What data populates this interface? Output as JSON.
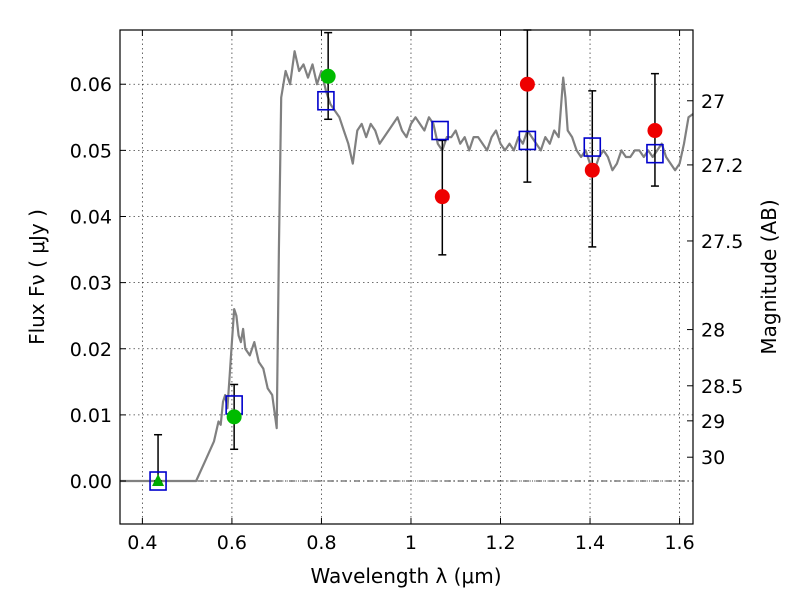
{
  "chart_data": {
    "type": "scatter",
    "xlabel": "Wavelength  λ (μm)",
    "ylabel": "Flux  Fν  ( μJy )",
    "y2label": "Magnitude (AB)",
    "xlim": [
      0.35,
      1.63
    ],
    "ylim": [
      -0.0065,
      0.0682
    ],
    "x_ticks": [
      0.4,
      0.6,
      0.8,
      1.0,
      1.2,
      1.4,
      1.6
    ],
    "x_tick_labels": [
      "0.4",
      "0.6",
      "0.8",
      "1",
      "1.2",
      "1.4",
      "1.6"
    ],
    "y_ticks": [
      0.0,
      0.01,
      0.02,
      0.03,
      0.04,
      0.05,
      0.06
    ],
    "y_tick_labels": [
      "0.00",
      "0.01",
      "0.02",
      "0.03",
      "0.04",
      "0.05",
      "0.06"
    ],
    "y2_ticks": [
      {
        "label": "27",
        "flux": 0.0575
      },
      {
        "label": "27.2",
        "flux": 0.0478
      },
      {
        "label": "27.5",
        "flux": 0.0363
      },
      {
        "label": "28",
        "flux": 0.0229
      },
      {
        "label": "28.5",
        "flux": 0.0144
      },
      {
        "label": "29",
        "flux": 0.0091
      },
      {
        "label": "30",
        "flux": 0.0036
      }
    ],
    "grid": true,
    "series": [
      {
        "kind": "line",
        "color": "#808080",
        "x": [
          0.35,
          0.52,
          0.54,
          0.56,
          0.57,
          0.575,
          0.58,
          0.585,
          0.59,
          0.595,
          0.6,
          0.605,
          0.61,
          0.615,
          0.62,
          0.625,
          0.63,
          0.64,
          0.65,
          0.66,
          0.67,
          0.68,
          0.69,
          0.7,
          0.705,
          0.71,
          0.72,
          0.73,
          0.74,
          0.75,
          0.76,
          0.77,
          0.78,
          0.79,
          0.8,
          0.81,
          0.82,
          0.83,
          0.84,
          0.85,
          0.86,
          0.87,
          0.88,
          0.89,
          0.9,
          0.91,
          0.92,
          0.93,
          0.94,
          0.95,
          0.96,
          0.97,
          0.98,
          0.99,
          1.0,
          1.01,
          1.02,
          1.03,
          1.04,
          1.05,
          1.06,
          1.07,
          1.08,
          1.09,
          1.1,
          1.11,
          1.12,
          1.13,
          1.14,
          1.15,
          1.16,
          1.17,
          1.18,
          1.19,
          1.2,
          1.21,
          1.22,
          1.23,
          1.24,
          1.25,
          1.26,
          1.27,
          1.28,
          1.29,
          1.3,
          1.31,
          1.32,
          1.33,
          1.34,
          1.345,
          1.35,
          1.36,
          1.37,
          1.38,
          1.39,
          1.4,
          1.41,
          1.42,
          1.43,
          1.44,
          1.45,
          1.46,
          1.47,
          1.48,
          1.49,
          1.5,
          1.51,
          1.52,
          1.53,
          1.54,
          1.55,
          1.56,
          1.57,
          1.58,
          1.59,
          1.6,
          1.61,
          1.62,
          1.63
        ],
        "y": [
          0.0,
          0.0,
          0.003,
          0.006,
          0.009,
          0.0085,
          0.012,
          0.013,
          0.011,
          0.016,
          0.021,
          0.026,
          0.025,
          0.022,
          0.021,
          0.023,
          0.02,
          0.019,
          0.021,
          0.018,
          0.017,
          0.014,
          0.013,
          0.008,
          0.035,
          0.058,
          0.062,
          0.06,
          0.065,
          0.062,
          0.063,
          0.061,
          0.063,
          0.06,
          0.062,
          0.059,
          0.057,
          0.056,
          0.055,
          0.053,
          0.051,
          0.048,
          0.053,
          0.054,
          0.052,
          0.054,
          0.053,
          0.051,
          0.052,
          0.053,
          0.054,
          0.055,
          0.053,
          0.052,
          0.054,
          0.055,
          0.054,
          0.053,
          0.055,
          0.054,
          0.051,
          0.05,
          0.052,
          0.052,
          0.053,
          0.051,
          0.052,
          0.05,
          0.052,
          0.052,
          0.051,
          0.05,
          0.052,
          0.053,
          0.051,
          0.05,
          0.051,
          0.05,
          0.052,
          0.051,
          0.053,
          0.052,
          0.051,
          0.05,
          0.052,
          0.051,
          0.053,
          0.052,
          0.061,
          0.058,
          0.053,
          0.052,
          0.05,
          0.049,
          0.05,
          0.048,
          0.047,
          0.049,
          0.05,
          0.049,
          0.047,
          0.048,
          0.05,
          0.049,
          0.049,
          0.05,
          0.05,
          0.049,
          0.05,
          0.049,
          0.05,
          0.051,
          0.049,
          0.048,
          0.047,
          0.048,
          0.051,
          0.055,
          0.0555
        ]
      },
      {
        "kind": "squares",
        "color": "#0000cc",
        "x": [
          0.435,
          0.605,
          0.81,
          1.065,
          1.26,
          1.405,
          1.545
        ],
        "y": [
          0.0,
          0.0115,
          0.0575,
          0.053,
          0.0515,
          0.0505,
          0.0495
        ]
      },
      {
        "kind": "triangles",
        "color": "#00aa00",
        "x": [
          0.435
        ],
        "y": [
          0.0
        ]
      },
      {
        "kind": "circles",
        "color": "#00bb00",
        "x": [
          0.605,
          0.815
        ],
        "y": [
          0.0097,
          0.0612
        ]
      },
      {
        "kind": "circles",
        "color": "#ee0000",
        "x": [
          1.07,
          1.26,
          1.405,
          1.545
        ],
        "y": [
          0.043,
          0.06,
          0.047,
          0.053
        ]
      }
    ],
    "errorbars": [
      {
        "x": 0.435,
        "low": 0.0,
        "high": 0.007
      },
      {
        "x": 0.605,
        "low": 0.0048,
        "high": 0.0146
      },
      {
        "x": 0.815,
        "low": 0.0547,
        "high": 0.0678
      },
      {
        "x": 1.07,
        "low": 0.0342,
        "high": 0.0515
      },
      {
        "x": 1.26,
        "low": 0.0452,
        "high": 0.0682
      },
      {
        "x": 1.405,
        "low": 0.0354,
        "high": 0.059
      },
      {
        "x": 1.545,
        "low": 0.0446,
        "high": 0.0616
      }
    ]
  }
}
